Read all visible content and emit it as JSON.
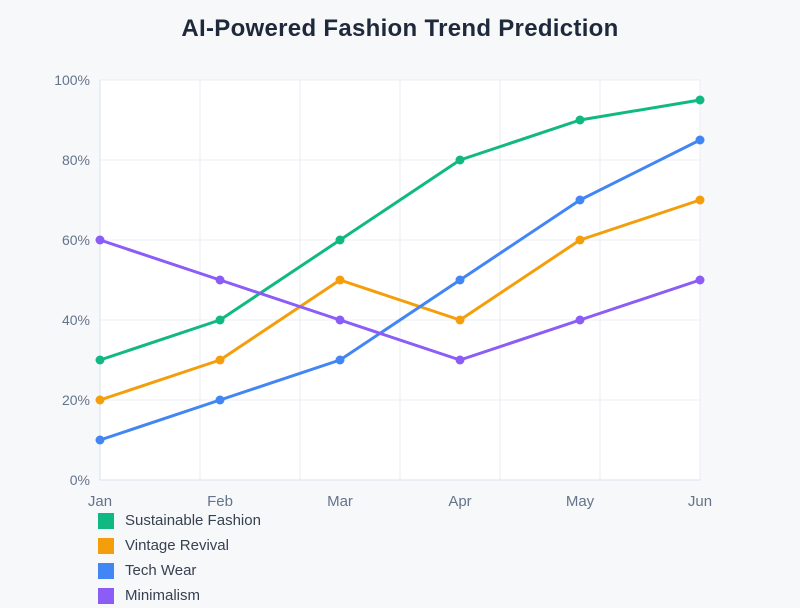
{
  "chart_data": {
    "type": "line",
    "title": "AI-Powered Fashion Trend Prediction",
    "categories": [
      "Jan",
      "Feb",
      "Mar",
      "Apr",
      "May",
      "Jun"
    ],
    "series": [
      {
        "name": "Sustainable Fashion",
        "color": "#10b981",
        "values": [
          30,
          40,
          60,
          80,
          90,
          95
        ]
      },
      {
        "name": "Vintage Revival",
        "color": "#f59e0b",
        "values": [
          20,
          30,
          50,
          40,
          60,
          70
        ]
      },
      {
        "name": "Tech Wear",
        "color": "#4285f4",
        "values": [
          10,
          20,
          30,
          50,
          70,
          85
        ]
      },
      {
        "name": "Minimalism",
        "color": "#8b5cf6",
        "values": [
          60,
          50,
          40,
          30,
          40,
          50
        ]
      }
    ],
    "y_ticks": [
      "0%",
      "20%",
      "40%",
      "60%",
      "80%",
      "100%"
    ],
    "ylim": [
      0,
      100
    ],
    "xlabel": "",
    "ylabel": "",
    "grid": true,
    "legend_position": "bottom-left"
  }
}
